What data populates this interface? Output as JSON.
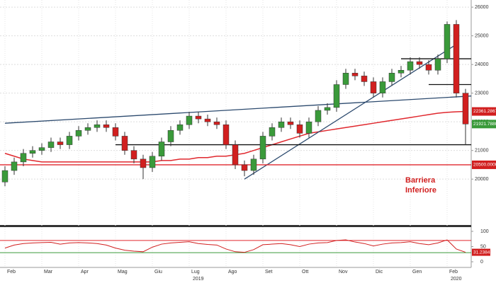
{
  "chart_data": [
    {
      "type": "candlestick",
      "categories": [
        "Feb",
        null,
        null,
        null,
        "Mar",
        null,
        null,
        null,
        "Apr",
        null,
        null,
        null,
        "Mag",
        null,
        null,
        null,
        "Giu",
        null,
        null,
        null,
        "Lug",
        null,
        null,
        null,
        "Ago",
        null,
        null,
        null,
        "Set",
        null,
        null,
        null,
        "Ott",
        null,
        null,
        null,
        "Nov",
        null,
        null,
        null,
        "Dic",
        null,
        null,
        null,
        "Gen",
        null,
        null,
        null,
        "Feb",
        null,
        null
      ],
      "years": [
        "2019",
        "2020"
      ],
      "open": [
        19900,
        20300,
        20600,
        20900,
        21000,
        21100,
        21300,
        21200,
        21500,
        21700,
        21800,
        21900,
        21800,
        21500,
        21000,
        20700,
        20400,
        20800,
        21300,
        21700,
        21900,
        22200,
        22100,
        22000,
        21900,
        21200,
        20500,
        20300,
        20700,
        21500,
        21800,
        22000,
        21900,
        21600,
        22000,
        22400,
        22500,
        23300,
        23700,
        23600,
        23400,
        23000,
        23400,
        23700,
        23800,
        24100,
        24000,
        23800,
        24200,
        25400,
        23000
      ],
      "high": [
        20450,
        20750,
        21050,
        21150,
        21250,
        21450,
        21450,
        21650,
        21850,
        21950,
        22050,
        22050,
        21950,
        21650,
        21150,
        20850,
        20950,
        21450,
        21850,
        22050,
        22350,
        22350,
        22250,
        22150,
        22050,
        21350,
        20650,
        20850,
        21650,
        21950,
        22150,
        22150,
        22050,
        22150,
        22550,
        22650,
        23450,
        23850,
        23850,
        23750,
        23550,
        23550,
        23850,
        23950,
        24250,
        24250,
        24150,
        24350,
        25500,
        25550,
        23150
      ],
      "low": [
        19750,
        20150,
        20450,
        20750,
        20850,
        20950,
        21050,
        21050,
        21350,
        21550,
        21650,
        21650,
        21350,
        20850,
        20550,
        20000,
        20250,
        20650,
        21150,
        21550,
        21750,
        21950,
        21850,
        21750,
        21050,
        20350,
        20100,
        20150,
        20550,
        21350,
        21650,
        21750,
        21450,
        21450,
        21850,
        22250,
        22350,
        23150,
        23450,
        23250,
        22850,
        22850,
        23250,
        23550,
        23650,
        23850,
        23650,
        23650,
        24050,
        22850,
        21200
      ],
      "close": [
        20300,
        20600,
        20900,
        21000,
        21100,
        21300,
        21200,
        21500,
        21700,
        21800,
        21900,
        21800,
        21500,
        21000,
        20700,
        20400,
        20800,
        21300,
        21700,
        21900,
        22200,
        22100,
        22000,
        21900,
        21200,
        20500,
        20300,
        20700,
        21500,
        21800,
        22000,
        21900,
        21600,
        22000,
        22400,
        22500,
        23300,
        23700,
        23600,
        23400,
        23000,
        23400,
        23700,
        23800,
        24100,
        24000,
        23800,
        24200,
        25400,
        23000,
        21921.788
      ],
      "up_color": "#3a9a3a",
      "down_color": "#d11f1f",
      "moving_average": {
        "color": "#e0282e",
        "values": [
          20900,
          20800,
          20700,
          20650,
          20600,
          20600,
          20600,
          20600,
          20600,
          20600,
          20600,
          20600,
          20600,
          20600,
          20600,
          20600,
          20600,
          20650,
          20650,
          20700,
          20700,
          20750,
          20750,
          20800,
          20800,
          20850,
          20900,
          21000,
          21100,
          21200,
          21300,
          21400,
          21500,
          21600,
          21650,
          21700,
          21750,
          21800,
          21850,
          21900,
          21950,
          22000,
          22050,
          22100,
          22150,
          22200,
          22250,
          22300,
          22330,
          22350,
          22361.2867
        ]
      },
      "trendlines": [
        {
          "color": "#2c4a6e",
          "x": [
            0,
            51
          ],
          "y": [
            21950,
            22900
          ]
        },
        {
          "color": "#2c4a6e",
          "x": [
            26,
            49
          ],
          "y": [
            20000,
            24700
          ]
        },
        {
          "color": "#111111",
          "x": [
            12,
            51
          ],
          "y": [
            21200,
            21200
          ]
        },
        {
          "color": "#111111",
          "x": [
            43,
            51
          ],
          "y": [
            24200,
            24200
          ]
        },
        {
          "color": "#111111",
          "x": [
            46,
            51
          ],
          "y": [
            23300,
            23300
          ]
        },
        {
          "color": "#e0282e",
          "x": [
            -1,
            51
          ],
          "y": [
            20500,
            20500
          ]
        }
      ],
      "price_tags": [
        {
          "color": "#d11f1f",
          "value": 22361.2867
        },
        {
          "color": "#3a9a3a",
          "value": {
            "value": 21921.788,
            "label": "21921.7880"
          }
        },
        {
          "color": "#d11f1f",
          "value": {
            "value": 20500,
            "label": "20500.0000"
          }
        }
      ],
      "annotation": [
        "Barriera",
        "Inferiore"
      ],
      "ylim": [
        18400,
        26250
      ],
      "yticks": [
        20000,
        21000,
        22000,
        23000,
        24000,
        25000,
        26000
      ],
      "grid": true
    },
    {
      "type": "oscillator",
      "color": "#d11f1f",
      "values": [
        45,
        55,
        60,
        62,
        63,
        64,
        58,
        62,
        63,
        62,
        60,
        55,
        45,
        38,
        35,
        33,
        48,
        58,
        62,
        64,
        66,
        60,
        57,
        55,
        42,
        33,
        31,
        40,
        56,
        58,
        60,
        56,
        50,
        58,
        62,
        63,
        70,
        72,
        65,
        60,
        52,
        58,
        62,
        63,
        66,
        60,
        56,
        62,
        72,
        42,
        31.2384
      ],
      "ylim": [
        0,
        100
      ],
      "yticks": [
        0,
        50,
        100
      ],
      "bands": [
        {
          "value": 70,
          "color": "#e0282e"
        },
        {
          "value": 30,
          "color": "#3a9a3a"
        }
      ],
      "tag_color": "#d11f1f"
    }
  ]
}
